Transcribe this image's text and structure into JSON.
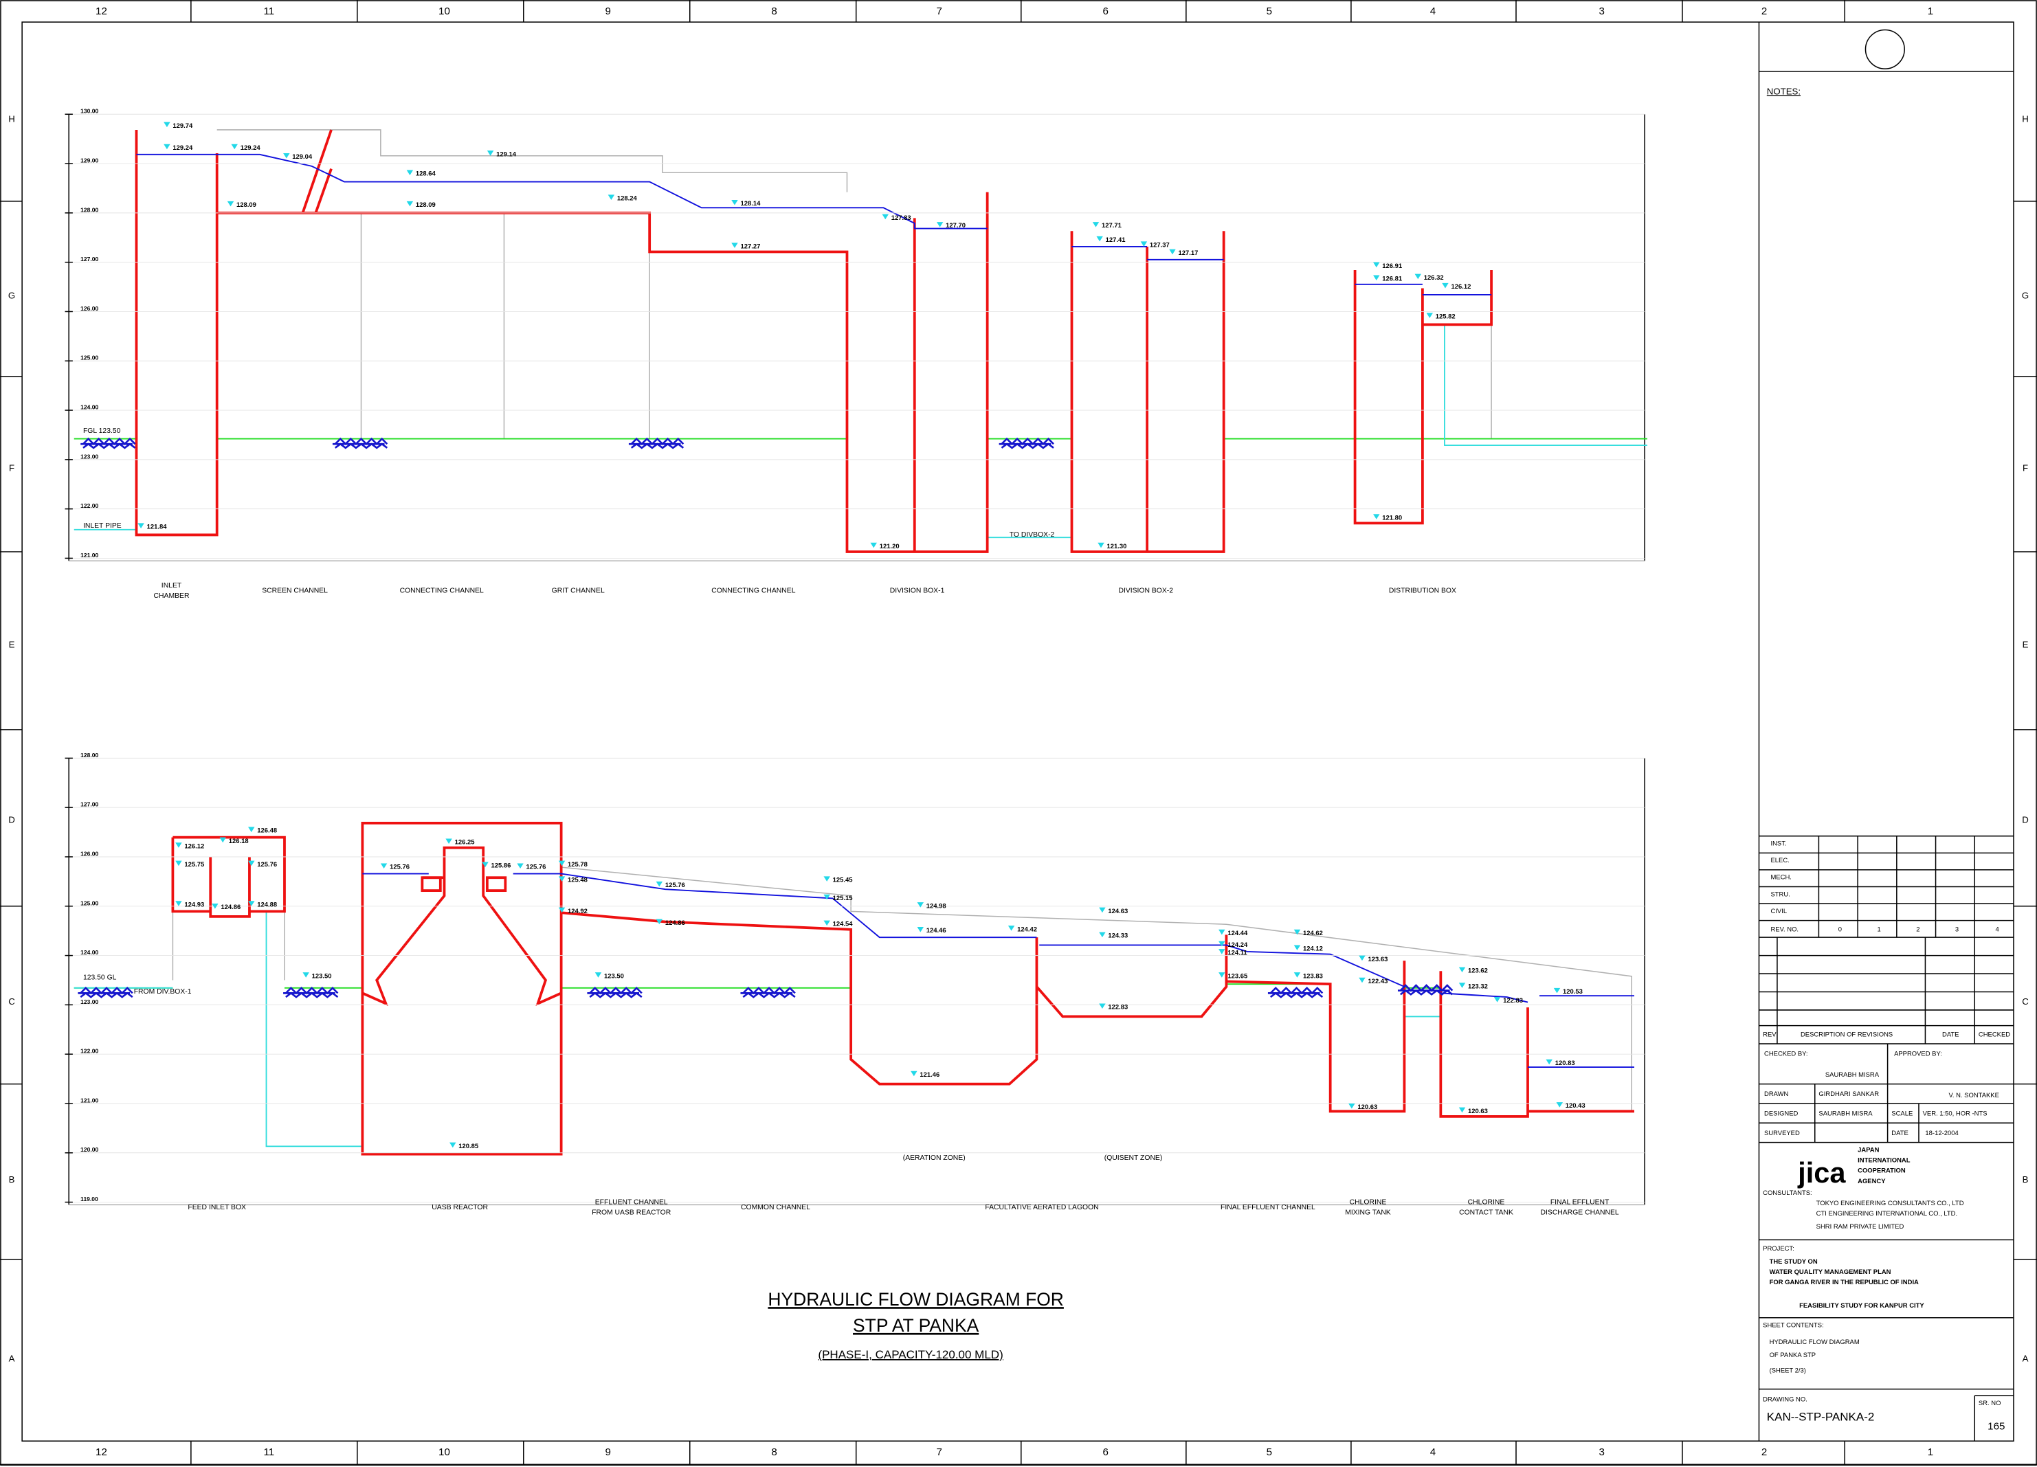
{
  "border": {
    "columns": [
      "12",
      "11",
      "10",
      "9",
      "8",
      "7",
      "6",
      "5",
      "4",
      "3",
      "2",
      "1"
    ],
    "rows": [
      "H",
      "G",
      "F",
      "E",
      "D",
      "C",
      "B",
      "A"
    ]
  },
  "upper": {
    "elevations": [
      "130.00",
      "129.00",
      "128.00",
      "127.00",
      "126.00",
      "125.00",
      "124.00",
      "123.00",
      "122.00",
      "121.00"
    ],
    "levels": [
      "129.74",
      "129.24",
      "129.24",
      "129.04",
      "128.64",
      "129.14",
      "128.09",
      "128.09",
      "128.24",
      "128.14",
      "127.83",
      "127.70",
      "127.27",
      "127.71",
      "127.41",
      "127.37",
      "127.17",
      "126.91",
      "126.81",
      "126.32",
      "126.12",
      "125.82",
      "FGL 123.50",
      "INLET PIPE",
      "121.84",
      "121.20",
      "TO DIVBOX-2",
      "121.30",
      "121.80"
    ],
    "structures": [
      [
        "INLET",
        "CHAMBER"
      ],
      [
        "SCREEN CHANNEL"
      ],
      [
        "CONNECTING CHANNEL"
      ],
      [
        "GRIT CHANNEL"
      ],
      [
        "CONNECTING CHANNEL"
      ],
      [
        "DIVISION BOX-1"
      ],
      [
        "DIVISION BOX-2"
      ],
      [
        "DISTRIBUTION BOX"
      ]
    ]
  },
  "lower": {
    "elevations": [
      "128.00",
      "127.00",
      "126.00",
      "125.00",
      "124.00",
      "123.00",
      "122.00",
      "121.00",
      "120.00",
      "119.00"
    ],
    "levels": [
      "126.12",
      "126.18",
      "126.48",
      "125.75",
      "125.76",
      "124.93",
      "124.86",
      "124.88",
      "123.50 GL",
      "FROM DIV.BOX-1",
      "123.50",
      "125.76",
      "126.25",
      "125.86",
      "125.76",
      "125.78",
      "125.48",
      "124.92",
      "124.86",
      "123.50",
      "125.76",
      "125.45",
      "125.15",
      "124.54",
      "124.98",
      "124.46",
      "124.42",
      "124.63",
      "124.33",
      "122.83",
      "121.46",
      "120.85",
      "124.44",
      "124.24",
      "124.11",
      "123.65",
      "124.62",
      "124.12",
      "123.83",
      "123.63",
      "122.43",
      "120.63",
      "123.62",
      "123.32",
      "122.83",
      "120.63",
      "120.53",
      "120.83",
      "120.43",
      "(AERATION ZONE)",
      "(QUISENT ZONE)"
    ],
    "structures": [
      [
        "FEED INLET BOX"
      ],
      [
        "UASB REACTOR"
      ],
      [
        "EFFLUENT CHANNEL",
        "FROM UASB REACTOR"
      ],
      [
        "COMMON CHANNEL"
      ],
      [
        "FACULTATIVE AERATED LAGOON"
      ],
      [
        "FINAL EFFLUENT CHANNEL"
      ],
      [
        "CHLORINE",
        "MIXING TANK"
      ],
      [
        "CHLORINE",
        "CONTACT TANK"
      ],
      [
        "FINAL EFFLUENT",
        "DISCHARGE CHANNEL"
      ]
    ]
  },
  "title": {
    "line1": "HYDRAULIC  FLOW DIAGRAM FOR",
    "line2": "STP AT PANKA",
    "subtitle": "(PHASE-I, CAPACITY-120.00 MLD)"
  },
  "title_block": {
    "items": [
      "NOTES:",
      "INST.",
      "ELEC.",
      "MECH.",
      "STRU.",
      "CIVIL",
      "REV. NO.",
      "0",
      "1",
      "2",
      "3",
      "4",
      "REV",
      "DESCRIPTION OF REVISIONS",
      "DATE",
      "CHECKED",
      "CHECKED BY:",
      "SAURABH MISRA",
      "APPROVED BY:",
      "V. N. SONTAKKE",
      "DRAWN",
      "GIRDHARI SANKAR",
      "DESIGNED",
      "SAURABH MISRA",
      "SCALE",
      "VER. 1:50, HOR -NTS",
      "SURVEYED",
      "DATE",
      "18-12-2004",
      "JAPAN",
      "INTERNATIONAL",
      "COOPERATION",
      "AGENCY",
      "CONSULTANTS:",
      "TOKYO ENGINEERING CONSULTANTS CO., LTD",
      "CTI ENGINEERING INTERNATIONAL CO., LTD.",
      "SHRI RAM PRIVATE LIMITED",
      "PROJECT:",
      "THE STUDY ON",
      "WATER QUALITY MANAGEMENT PLAN",
      "FOR GANGA RIVER IN THE REPUBLIC OF INDIA",
      "FEASIBILITY STUDY FOR KANPUR CITY",
      "SHEET CONTENTS:",
      "HYDRAULIC FLOW DIAGRAM",
      "OF PANKA STP",
      "(SHEET 2/3)",
      "DRAWING NO.",
      "KAN--STP-PANKA-2",
      "SR. NO",
      "165",
      "jica"
    ]
  }
}
